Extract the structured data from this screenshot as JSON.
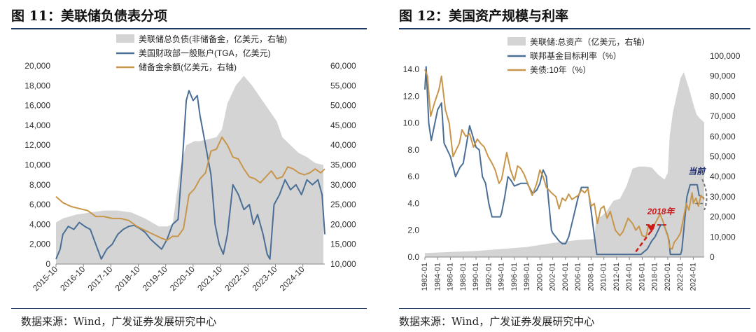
{
  "figures": [
    {
      "title": "图 11：美联储负债表分项",
      "source": "数据来源：Wind，广发证券发展研究中心"
    },
    {
      "title": "图 12：美国资产规模与利率",
      "source": "数据来源：Wind，广发证券发展研究中心"
    }
  ],
  "chart_data": [
    {
      "type": "line",
      "title": "图 11：美联储负债表分项",
      "x_ticks": [
        "2015-10",
        "2016-10",
        "2017-10",
        "2018-10",
        "2019-10",
        "2020-10",
        "2021-10",
        "2022-10",
        "2023-10",
        "2024-10"
      ],
      "x_range": [
        2015.75,
        2025.55
      ],
      "y_left": {
        "min": 0,
        "max": 20000,
        "ticks": [
          "0",
          "2,000",
          "4,000",
          "6,000",
          "8,000",
          "10,000",
          "12,000",
          "14,000",
          "16,000",
          "18,000",
          "20,000"
        ]
      },
      "y_right": {
        "min": 10000,
        "max": 60000,
        "ticks": [
          "10,000",
          "15,000",
          "20,000",
          "25,000",
          "30,000",
          "35,000",
          "40,000",
          "45,000",
          "50,000",
          "55,000",
          "60,000"
        ]
      },
      "legend": [
        "美联储总负债(非储备金，亿美元，右轴)",
        "美国财政部一般账户(TGA，亿美元)",
        "储备金余额(亿美元，右轴)"
      ],
      "colors": {
        "area": "#d4d4d4",
        "tga": "#4a6f96",
        "reserves": "#c8964a"
      },
      "series": [
        {
          "name": "美联储总负债(非储备金，亿美元，右轴)",
          "kind": "area",
          "axis": "right",
          "x": [
            2015.75,
            2016.0,
            2016.5,
            2017.0,
            2017.5,
            2018.0,
            2018.5,
            2019.0,
            2019.5,
            2019.8,
            2020.0,
            2020.3,
            2020.5,
            2020.8,
            2021.0,
            2021.3,
            2021.6,
            2021.8,
            2022.0,
            2022.3,
            2022.6,
            2022.9,
            2023.2,
            2023.5,
            2023.8,
            2024.0,
            2024.3,
            2024.6,
            2024.9,
            2025.2,
            2025.5
          ],
          "values": [
            20500,
            21500,
            22500,
            23000,
            23500,
            23500,
            23000,
            21500,
            19500,
            19500,
            20000,
            35000,
            40000,
            41000,
            41000,
            41500,
            42000,
            44000,
            50500,
            55000,
            57500,
            55000,
            52000,
            49000,
            46000,
            42000,
            40000,
            38000,
            37000,
            35500,
            35000
          ]
        },
        {
          "name": "美国财政部一般账户(TGA，亿美元)",
          "kind": "line",
          "axis": "left",
          "x": [
            2015.75,
            2015.9,
            2016.0,
            2016.2,
            2016.4,
            2016.6,
            2016.8,
            2017.0,
            2017.2,
            2017.4,
            2017.6,
            2017.8,
            2018.0,
            2018.2,
            2018.4,
            2018.6,
            2018.8,
            2019.0,
            2019.2,
            2019.4,
            2019.6,
            2019.8,
            2020.0,
            2020.2,
            2020.35,
            2020.5,
            2020.6,
            2020.75,
            2020.9,
            2021.0,
            2021.2,
            2021.4,
            2021.55,
            2021.7,
            2021.85,
            2022.0,
            2022.2,
            2022.4,
            2022.6,
            2022.8,
            2022.95,
            2023.1,
            2023.3,
            2023.45,
            2023.55,
            2023.7,
            2023.9,
            2024.1,
            2024.3,
            2024.5,
            2024.7,
            2024.9,
            2025.1,
            2025.3,
            2025.45,
            2025.55
          ],
          "values": [
            500,
            1500,
            3000,
            3800,
            3500,
            4200,
            3800,
            3500,
            2000,
            500,
            1500,
            2000,
            3000,
            3500,
            3800,
            3900,
            3600,
            3200,
            2500,
            2000,
            1500,
            2500,
            4000,
            4500,
            10000,
            16500,
            17500,
            16500,
            17000,
            15000,
            12000,
            9000,
            4000,
            2000,
            1000,
            3000,
            8000,
            7000,
            5500,
            6000,
            4000,
            5000,
            3000,
            1000,
            500,
            6000,
            7000,
            8500,
            7500,
            8000,
            7000,
            8500,
            8000,
            8500,
            7000,
            3000
          ]
        },
        {
          "name": "储备金余额(亿美元，右轴)",
          "kind": "line",
          "axis": "right",
          "x": [
            2015.75,
            2016.0,
            2016.3,
            2016.6,
            2016.9,
            2017.2,
            2017.5,
            2017.8,
            2018.1,
            2018.4,
            2018.7,
            2019.0,
            2019.3,
            2019.6,
            2019.8,
            2020.0,
            2020.2,
            2020.4,
            2020.6,
            2020.8,
            2021.0,
            2021.2,
            2021.4,
            2021.6,
            2021.8,
            2022.0,
            2022.2,
            2022.4,
            2022.6,
            2022.8,
            2023.0,
            2023.2,
            2023.4,
            2023.6,
            2023.8,
            2024.0,
            2024.2,
            2024.4,
            2024.6,
            2024.8,
            2025.0,
            2025.2,
            2025.4,
            2025.55
          ],
          "values": [
            27000,
            25500,
            24500,
            24000,
            23500,
            22000,
            22000,
            21500,
            21500,
            21000,
            19500,
            18500,
            17500,
            16500,
            16000,
            17000,
            17000,
            19000,
            27500,
            29000,
            31500,
            33000,
            38500,
            39000,
            42000,
            40000,
            37000,
            36500,
            34000,
            32000,
            31500,
            30500,
            32000,
            33500,
            31500,
            32000,
            34500,
            34000,
            33000,
            32500,
            33000,
            34000,
            33000,
            34000
          ]
        }
      ]
    },
    {
      "type": "line",
      "title": "图 12：美国资产规模与利率",
      "x_ticks": [
        "1982-01",
        "1984-01",
        "1986-01",
        "1988-01",
        "1990-01",
        "1992-01",
        "1994-01",
        "1996-01",
        "1998-01",
        "2000-01",
        "2002-01",
        "2004-01",
        "2006-01",
        "2008-01",
        "2010-01",
        "2012-01",
        "2014-01",
        "2016-01",
        "2018-01",
        "2020-01",
        "2022-01",
        "2024-01"
      ],
      "x_range": [
        1982.0,
        2025.7
      ],
      "y_left": {
        "min": 0,
        "max": 15,
        "ticks": [
          "0.0",
          "2.0",
          "4.0",
          "6.0",
          "8.0",
          "10.0",
          "12.0",
          "14.0"
        ]
      },
      "y_right": {
        "min": 0,
        "max": 100000,
        "ticks": [
          "0",
          "10,000",
          "20,000",
          "30,000",
          "40,000",
          "50,000",
          "60,000",
          "70,000",
          "80,000",
          "90,000",
          "100,000"
        ]
      },
      "legend": [
        "美联储:总资产（亿美元，右轴）",
        "联邦基金目标利率（%）",
        "美债:10年（%）"
      ],
      "annotations": [
        "2018年",
        "当前"
      ],
      "colors": {
        "area": "#d4d4d4",
        "ffr": "#4a6f96",
        "ust10": "#c8964a",
        "arrow": "#cc1a1a",
        "current": "#1a2a6c"
      },
      "series": [
        {
          "name": "美联储:总资产（亿美元，右轴）",
          "kind": "area",
          "axis": "right",
          "x": [
            1982.0,
            1986.0,
            1990.0,
            1994.0,
            1998.0,
            2002.0,
            2006.0,
            2008.5,
            2008.8,
            2009.5,
            2010.5,
            2011.5,
            2012.5,
            2013.5,
            2014.5,
            2015.5,
            2016.5,
            2017.5,
            2018.5,
            2019.5,
            2020.0,
            2020.3,
            2020.8,
            2021.5,
            2022.0,
            2022.5,
            2023.0,
            2023.5,
            2024.0,
            2024.5,
            2025.0,
            2025.7
          ],
          "values": [
            2000,
            2500,
            3000,
            4000,
            5000,
            7000,
            8500,
            9000,
            20000,
            20000,
            23000,
            28000,
            29000,
            35000,
            44000,
            45000,
            45000,
            44500,
            41000,
            38500,
            42000,
            60000,
            72000,
            82000,
            89000,
            92000,
            87000,
            82000,
            76000,
            71000,
            69000,
            67000
          ]
        },
        {
          "name": "联邦基金目标利率（%）",
          "kind": "line",
          "axis": "left",
          "x": [
            1982.0,
            1982.2,
            1982.6,
            1983.0,
            1984.0,
            1984.6,
            1985.0,
            1986.0,
            1986.8,
            1987.5,
            1988.0,
            1989.0,
            1989.5,
            1990.0,
            1990.5,
            1991.0,
            1991.5,
            1992.0,
            1992.5,
            1993.0,
            1993.8,
            1994.0,
            1994.5,
            1995.0,
            1995.5,
            1996.0,
            1997.0,
            1998.0,
            1998.8,
            1999.0,
            1999.5,
            2000.0,
            2000.5,
            2001.0,
            2001.4,
            2001.8,
            2002.0,
            2003.0,
            2003.5,
            2004.0,
            2004.5,
            2005.0,
            2005.5,
            2006.0,
            2006.5,
            2007.0,
            2007.5,
            2008.0,
            2008.4,
            2008.9,
            2009.5,
            2015.8,
            2016.8,
            2017.5,
            2018.0,
            2018.9,
            2019.4,
            2019.7,
            2020.0,
            2020.2,
            2020.4,
            2021.5,
            2022.0,
            2022.2,
            2022.5,
            2022.8,
            2023.0,
            2023.5,
            2024.0,
            2024.6,
            2024.9,
            2025.7
          ],
          "values": [
            12.5,
            14.2,
            10.0,
            8.7,
            11.0,
            11.5,
            8.5,
            7.5,
            6.0,
            6.7,
            7.0,
            9.8,
            9.0,
            8.2,
            8.0,
            6.0,
            5.5,
            4.0,
            3.0,
            3.0,
            3.0,
            3.3,
            4.5,
            6.0,
            5.7,
            5.3,
            5.5,
            5.5,
            4.8,
            4.8,
            5.0,
            5.5,
            6.5,
            6.0,
            4.0,
            2.0,
            1.8,
            1.2,
            1.0,
            1.0,
            1.5,
            2.5,
            3.5,
            4.5,
            5.2,
            5.2,
            5.2,
            3.5,
            2.0,
            0.2,
            0.2,
            0.2,
            0.6,
            1.2,
            1.5,
            2.4,
            2.4,
            2.0,
            1.6,
            1.2,
            0.2,
            0.2,
            0.2,
            0.5,
            2.0,
            3.5,
            4.5,
            5.4,
            5.4,
            5.4,
            4.6,
            4.4
          ]
        },
        {
          "name": "美债:10年（%）",
          "kind": "line",
          "axis": "left",
          "x": [
            1982.0,
            1982.4,
            1982.9,
            1983.5,
            1984.2,
            1984.6,
            1985.2,
            1985.8,
            1986.4,
            1986.9,
            1987.4,
            1987.8,
            1988.4,
            1989.0,
            1989.6,
            1990.2,
            1990.7,
            1991.3,
            1991.9,
            1992.5,
            1993.0,
            1993.6,
            1994.0,
            1994.8,
            1995.4,
            1996.0,
            1996.5,
            1997.0,
            1997.5,
            1998.0,
            1998.8,
            1999.5,
            2000.0,
            2000.5,
            2001.0,
            2001.8,
            2002.5,
            2003.0,
            2003.5,
            2004.0,
            2004.5,
            2005.0,
            2006.0,
            2006.5,
            2007.0,
            2007.5,
            2008.0,
            2008.5,
            2009.0,
            2009.5,
            2010.0,
            2010.5,
            2011.0,
            2011.8,
            2012.5,
            2013.0,
            2013.8,
            2014.5,
            2015.0,
            2015.5,
            2016.0,
            2016.6,
            2017.0,
            2017.5,
            2018.0,
            2018.8,
            2019.3,
            2019.8,
            2020.0,
            2020.3,
            2020.7,
            2021.0,
            2021.5,
            2022.0,
            2022.5,
            2022.9,
            2023.3,
            2023.8,
            2024.0,
            2024.4,
            2024.8,
            2025.2,
            2025.7
          ],
          "values": [
            14.0,
            13.5,
            10.5,
            11.5,
            12.5,
            13.5,
            11.0,
            10.0,
            7.5,
            8.0,
            8.5,
            9.5,
            9.0,
            9.2,
            8.2,
            8.8,
            8.5,
            8.2,
            7.5,
            7.0,
            6.5,
            5.5,
            5.8,
            7.8,
            6.5,
            5.7,
            6.8,
            6.6,
            6.2,
            5.6,
            4.6,
            5.5,
            6.5,
            6.0,
            5.2,
            4.8,
            4.5,
            3.6,
            4.4,
            4.2,
            4.7,
            4.3,
            4.6,
            5.0,
            4.8,
            5.1,
            3.8,
            4.0,
            2.5,
            3.6,
            3.8,
            2.9,
            3.4,
            2.0,
            1.6,
            1.9,
            2.9,
            2.5,
            2.0,
            2.3,
            1.6,
            1.5,
            2.4,
            2.3,
            2.5,
            3.2,
            2.6,
            1.8,
            1.6,
            0.7,
            0.6,
            1.1,
            1.4,
            1.8,
            3.0,
            4.0,
            3.5,
            4.8,
            4.0,
            4.4,
            3.8,
            4.6,
            4.3
          ]
        }
      ]
    }
  ]
}
